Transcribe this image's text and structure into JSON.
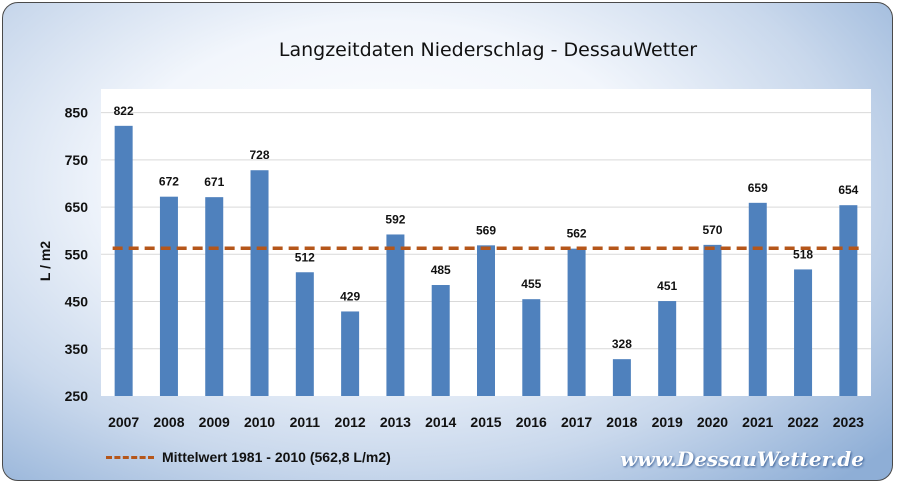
{
  "chart_data": {
    "type": "bar",
    "title": "Langzeitdaten Niederschlag - DessauWetter",
    "ylabel": "L / m2",
    "xlabel": "",
    "categories": [
      "2007",
      "2008",
      "2009",
      "2010",
      "2011",
      "2012",
      "2013",
      "2014",
      "2015",
      "2016",
      "2017",
      "2018",
      "2019",
      "2020",
      "2021",
      "2022",
      "2023"
    ],
    "values": [
      822,
      672,
      671,
      728,
      512,
      429,
      592,
      485,
      569,
      455,
      562,
      328,
      451,
      570,
      659,
      518,
      654
    ],
    "ylim": [
      250,
      900
    ],
    "yticks": [
      250,
      350,
      450,
      550,
      650,
      750,
      850
    ],
    "reference_line": {
      "value": 562.8,
      "label": "Mittelwert 1981 - 2010 (562,8 L/m2)",
      "color": "#b5561a",
      "style": "dashed"
    },
    "bar_color": "#4f81bd",
    "grid": true,
    "legend_position": "bottom-left"
  },
  "watermark": "www.DessauWetter.de"
}
